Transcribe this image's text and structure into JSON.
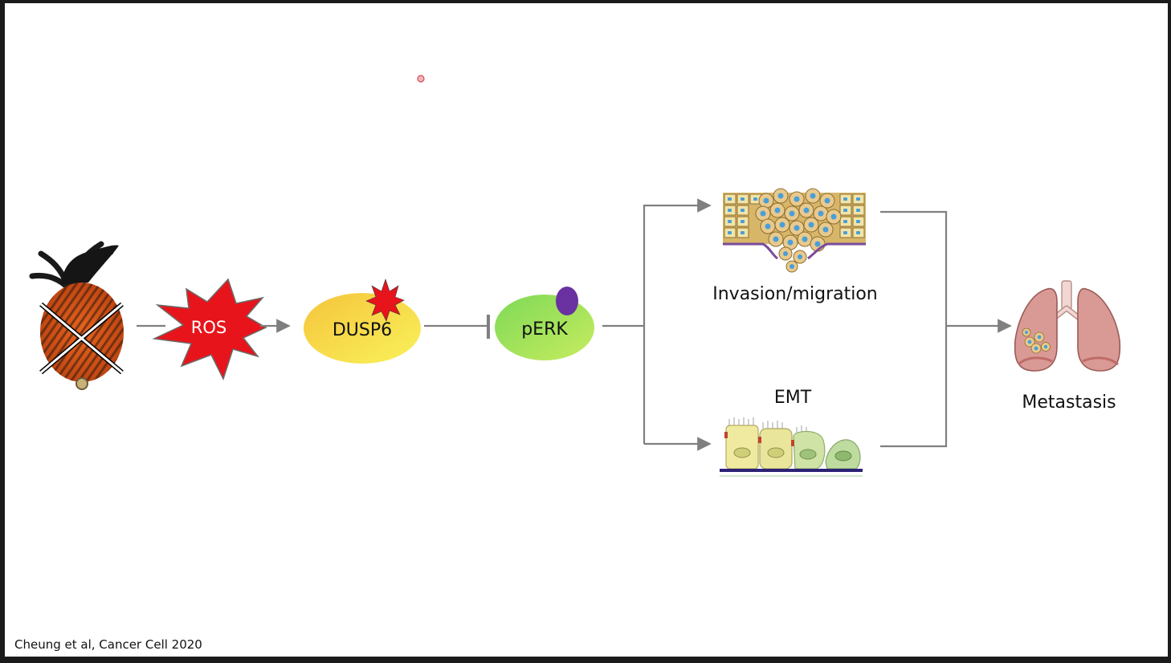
{
  "nodes": {
    "ros": "ROS",
    "dusp6": "DUSP6",
    "perk": "pERK",
    "invasion": "Invasion/migration",
    "emt": "EMT",
    "metastasis": "Metastasis"
  },
  "citation": "Cheung et al, Cancer Cell 2020",
  "colors": {
    "ros_burst": "#e8141b",
    "dusp6_grad_start": "#f6c43c",
    "dusp6_grad_end": "#f8f25a",
    "perk_grad_start": "#7ed957",
    "perk_grad_end": "#c7ec5f",
    "phospho": "#6a31a0",
    "arrow": "#7f7f7f",
    "lung": "#d99a96"
  },
  "icons": [
    "mouse-icon",
    "knockout-cross-icon",
    "epithelial-invasion-icon",
    "emt-cells-icon",
    "lungs-icon"
  ]
}
